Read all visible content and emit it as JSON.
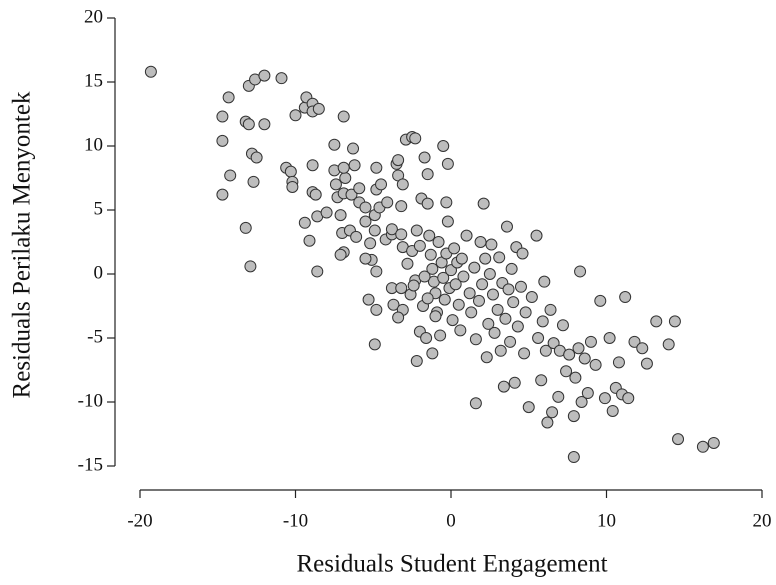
{
  "chart_data": {
    "type": "scatter",
    "xlabel": "Residuals Student Engagement",
    "ylabel": "Residuals Perilaku Menyontek",
    "xlim": [
      -20,
      20
    ],
    "xticks": [
      -20,
      -10,
      0,
      10,
      20
    ],
    "ylim": [
      -15,
      20
    ],
    "yticks": [
      -15,
      -10,
      -5,
      0,
      5,
      10,
      15,
      20
    ],
    "color": "#bdbdbd",
    "x": [
      -19.3,
      -14.7,
      -14.7,
      -14.7,
      -14.3,
      -14.2,
      -13.2,
      -13.0,
      -13.2,
      -12.9,
      -13.0,
      -12.6,
      -12.0,
      -12.8,
      -12.5,
      -12.7,
      -12.0,
      -10.9,
      -10.6,
      -10.3,
      -10.2,
      -10.2,
      -10.0,
      -9.4,
      -9.3,
      -8.9,
      -8.9,
      -8.5,
      -9.4,
      -9.1,
      -8.9,
      -8.9,
      -8.7,
      -8.6,
      -8.6,
      -8.0,
      -7.5,
      -6.9,
      -7.5,
      -7.4,
      -7.3,
      -7.1,
      -6.9,
      -6.8,
      -6.4,
      -6.9,
      -7.0,
      -6.5,
      -6.9,
      -7.1,
      -6.3,
      -6.2,
      -6.1,
      -5.9,
      -5.9,
      -5.5,
      -5.5,
      -5.2,
      -4.9,
      -4.9,
      -4.8,
      -4.8,
      -4.5,
      -4.6,
      -5.1,
      -4.8,
      -5.5,
      -5.3,
      -4.8,
      -4.9,
      -4.2,
      -4.1,
      -3.8,
      -3.8,
      -3.5,
      -3.4,
      -3.4,
      -3.2,
      -3.2,
      -3.1,
      -3.1,
      -2.9,
      -2.5,
      -2.3,
      -3.8,
      -3.7,
      -3.2,
      -3.1,
      -3.4,
      -2.8,
      -2.5,
      -2.3,
      -2.2,
      -2.0,
      -1.9,
      -1.7,
      -1.5,
      -1.5,
      -1.4,
      -1.3,
      -1.2,
      -1.1,
      -1.0,
      -0.9,
      -0.8,
      -0.6,
      -0.5,
      -0.4,
      -0.3,
      -0.2,
      -0.1,
      0,
      0.1,
      0.2,
      0.3,
      0.4,
      0.5,
      0.6,
      0.7,
      0.8,
      -0.5,
      -0.2,
      -0.3,
      -1.8,
      -2.0,
      -1.6,
      -2.2,
      -1.2,
      -0.7,
      -2.6,
      -2.4,
      -1.7,
      -1.5,
      -1.0,
      1.0,
      1.2,
      1.3,
      1.5,
      1.6,
      1.8,
      1.9,
      2.0,
      2.1,
      2.2,
      2.3,
      2.4,
      2.5,
      2.6,
      2.7,
      2.8,
      3.0,
      3.1,
      3.2,
      3.3,
      3.4,
      3.5,
      3.6,
      3.7,
      3.8,
      3.9,
      4.0,
      4.1,
      4.2,
      4.3,
      4.5,
      4.6,
      4.7,
      4.8,
      5.0,
      5.2,
      5.5,
      5.6,
      5.8,
      5.9,
      6.0,
      6.1,
      6.2,
      6.4,
      6.5,
      6.6,
      6.9,
      7.0,
      7.2,
      7.4,
      7.6,
      7.9,
      7.9,
      8.0,
      8.2,
      8.3,
      8.4,
      8.6,
      8.8,
      9.0,
      9.3,
      9.6,
      9.9,
      10.2,
      10.4,
      10.6,
      10.8,
      11.0,
      11.2,
      11.4,
      11.8,
      12.3,
      12.6,
      13.2,
      14.0,
      14.4,
      14.6,
      16.2,
      16.9,
      1.6
    ],
    "values": [
      15.8,
      6.2,
      10.4,
      12.3,
      13.8,
      7.7,
      11.9,
      11.7,
      3.6,
      0.6,
      14.7,
      15.2,
      15.5,
      9.4,
      9.1,
      7.2,
      11.7,
      15.3,
      8.3,
      8.0,
      7.2,
      6.8,
      12.4,
      13.0,
      13.8,
      13.3,
      12.7,
      12.9,
      4.0,
      2.6,
      8.5,
      6.4,
      6.2,
      0.2,
      4.5,
      4.8,
      10.1,
      12.3,
      8.1,
      7.0,
      6.0,
      4.6,
      6.3,
      7.5,
      6.2,
      8.3,
      3.2,
      3.4,
      1.7,
      1.5,
      9.8,
      8.5,
      2.9,
      6.7,
      5.6,
      5.2,
      4.1,
      2.4,
      4.6,
      3.4,
      6.6,
      8.3,
      7.0,
      5.2,
      1.1,
      0.2,
      1.2,
      -2.0,
      -2.8,
      -5.5,
      2.7,
      5.6,
      3.1,
      3.5,
      8.6,
      8.9,
      7.7,
      5.3,
      3.1,
      7.0,
      2.1,
      10.5,
      10.7,
      10.6,
      -1.1,
      -2.4,
      -1.1,
      -2.8,
      -3.4,
      0.8,
      1.8,
      -0.5,
      3.4,
      2.2,
      5.9,
      9.1,
      7.8,
      5.5,
      3.0,
      1.5,
      0.4,
      -0.6,
      -1.5,
      -3.0,
      2.5,
      0.9,
      -0.3,
      -2.0,
      1.6,
      4.1,
      -1.1,
      0.3,
      -3.6,
      2.0,
      -0.8,
      0.9,
      -2.4,
      -4.4,
      1.2,
      -0.2,
      10.0,
      8.6,
      5.6,
      -2.5,
      -4.5,
      -5.0,
      -6.8,
      -6.2,
      -4.8,
      -1.6,
      -0.9,
      -0.2,
      -1.9,
      -3.3,
      3.0,
      -1.5,
      -3.0,
      0.5,
      -5.1,
      -2.1,
      2.5,
      -0.8,
      5.5,
      1.2,
      -6.5,
      -3.9,
      0.0,
      2.3,
      -1.6,
      -4.6,
      -2.8,
      1.3,
      -6.0,
      -0.7,
      -8.8,
      -3.5,
      3.7,
      -1.2,
      -5.3,
      0.4,
      -2.2,
      -8.5,
      2.1,
      -4.1,
      -1.0,
      1.6,
      -6.2,
      -3.0,
      -10.4,
      -1.8,
      3.0,
      -5.0,
      -8.3,
      -3.7,
      -0.6,
      -6.0,
      -11.6,
      -2.8,
      -10.8,
      -5.4,
      -9.6,
      -6.0,
      -4.0,
      -7.6,
      -6.3,
      -14.3,
      -11.1,
      -8.1,
      -5.8,
      0.2,
      -10.0,
      -6.6,
      -9.3,
      -5.3,
      -7.1,
      -2.1,
      -9.7,
      -5.0,
      -10.7,
      -8.9,
      -6.9,
      -9.4,
      -1.8,
      -9.7,
      -5.3,
      -5.8,
      -7.0,
      -3.7,
      -5.5,
      -3.7,
      -12.9,
      -13.5,
      -13.2,
      -10.1
    ]
  }
}
